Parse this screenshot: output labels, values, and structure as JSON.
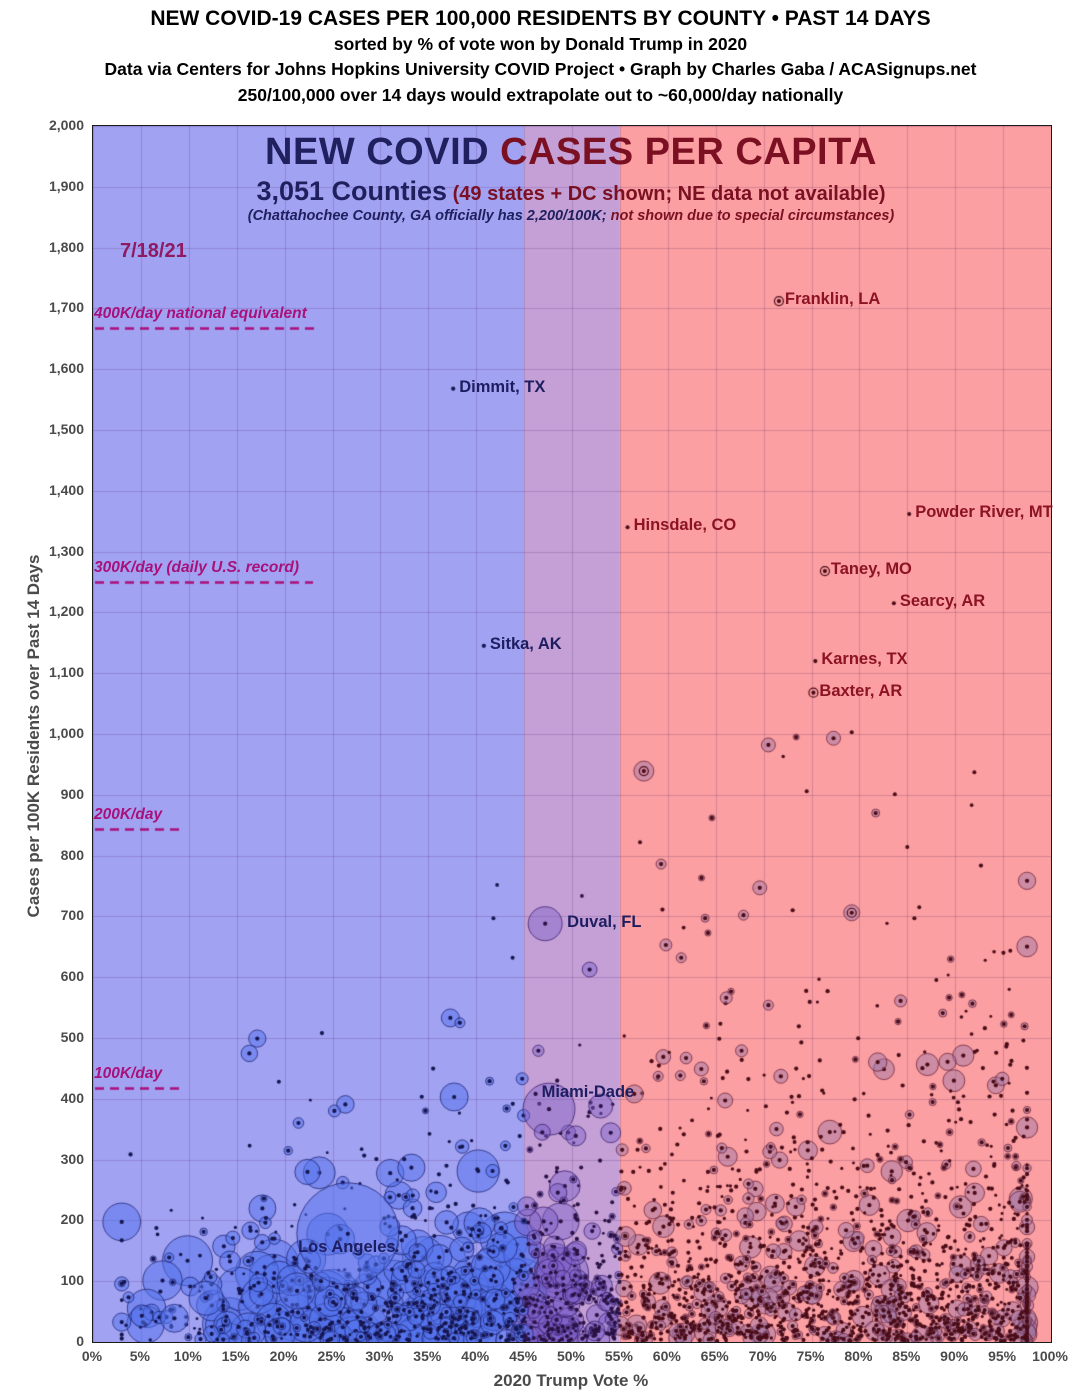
{
  "header": {
    "line1": "NEW COVID-19 CASES PER 100,000 RESIDENTS BY COUNTY • PAST 14 DAYS",
    "line2": "sorted by % of vote won by Donald Trump in 2020",
    "line3": "Data via Centers for Johns Hopkins University COVID Project • Graph by Charles Gaba / ACASignups.net",
    "line4": "250/100,000 over 14 days would extrapolate out to ~60,000/day nationally"
  },
  "chart": {
    "title_navy": "NEW COVID ",
    "title_red": "CASES PER CAPITA",
    "subtitle_navy": "3,051 Counties",
    "subtitle_red": " (49 states + DC shown; NE data not available)",
    "note_navy": "(Chattahochee County, GA officially has 2,200/100K;",
    "note_red": " not shown due to special circumstances)",
    "date_label": "7/18/21",
    "x_axis_title": "2020 Trump Vote %",
    "y_axis_title": "Cases per 100K Residents over Past 14 Days"
  },
  "colors": {
    "band_blue": "#a2a2f3",
    "band_purple": "#c5a0d7",
    "band_red": "#fb9fa2",
    "gridline": "rgba(70,25,90,0.20)",
    "annotation_magenta": "#a8117a",
    "title_navy": "#20205f",
    "title_maroon": "#7a1022",
    "label_navy": "#1d1d60",
    "label_maroon": "#8c1322",
    "dot_navy": "#161650",
    "dot_maroon": "#4a0d18"
  },
  "chart_data": {
    "type": "scatter",
    "title": "NEW COVID CASES PER CAPITA",
    "xlabel": "2020 Trump Vote %",
    "ylabel": "Cases per 100K Residents over Past 14 Days",
    "xlim": [
      0,
      100
    ],
    "ylim": [
      0,
      2000
    ],
    "x_ticks": [
      "0%",
      "5%",
      "10%",
      "15%",
      "20%",
      "25%",
      "30%",
      "35%",
      "40%",
      "45%",
      "50%",
      "55%",
      "60%",
      "65%",
      "70%",
      "75%",
      "80%",
      "85%",
      "90%",
      "95%",
      "100%"
    ],
    "y_ticks": [
      "2,000",
      "1,900",
      "1,800",
      "1,700",
      "1,600",
      "1,500",
      "1,400",
      "1,300",
      "1,200",
      "1,100",
      "1,000",
      "900",
      "800",
      "700",
      "600",
      "500",
      "400",
      "300",
      "200",
      "100",
      "0"
    ],
    "regions": [
      {
        "name": "blue-counties",
        "from": 0,
        "to": 45
      },
      {
        "name": "purple-overlap",
        "from": 45,
        "to": 55
      },
      {
        "name": "red-counties",
        "from": 55,
        "to": 100
      }
    ],
    "reference_lines": [
      {
        "label": "400K/day national equivalent",
        "cases": 1667,
        "dash_width": 224
      },
      {
        "label": "300K/day (daily U.S. record)",
        "cases": 1250,
        "dash_width": 218
      },
      {
        "label": "200K/day",
        "cases": 843,
        "dash_width": 84
      },
      {
        "label": "100K/day",
        "cases": 417,
        "dash_width": 84
      }
    ],
    "labeled_points": [
      {
        "name": "Franklin, LA",
        "x_pct": 71.6,
        "cases": 1712,
        "r": 2.2,
        "ring": true,
        "color": "maroon",
        "anchor": "right"
      },
      {
        "name": "Dimmit, TX",
        "x_pct": 37.6,
        "cases": 1568,
        "r": 2.2,
        "ring": false,
        "color": "navy",
        "anchor": "right"
      },
      {
        "name": "Powder River, MT",
        "x_pct": 85.2,
        "cases": 1362,
        "r": 2.0,
        "ring": false,
        "color": "maroon",
        "anchor": "right"
      },
      {
        "name": "Hinsdale, CO",
        "x_pct": 55.8,
        "cases": 1340,
        "r": 2.0,
        "ring": false,
        "color": "maroon",
        "anchor": "right"
      },
      {
        "name": "Taney, MO",
        "x_pct": 76.4,
        "cases": 1268,
        "r": 2.4,
        "ring": true,
        "color": "maroon",
        "anchor": "right"
      },
      {
        "name": "Searcy, AR",
        "x_pct": 83.6,
        "cases": 1215,
        "r": 2.0,
        "ring": false,
        "color": "maroon",
        "anchor": "right"
      },
      {
        "name": "Sitka, AK",
        "x_pct": 40.8,
        "cases": 1145,
        "r": 2.2,
        "ring": false,
        "color": "navy",
        "anchor": "right"
      },
      {
        "name": "Karnes, TX",
        "x_pct": 75.4,
        "cases": 1120,
        "r": 2.2,
        "ring": false,
        "color": "maroon",
        "anchor": "right"
      },
      {
        "name": "Baxter, AR",
        "x_pct": 75.2,
        "cases": 1068,
        "r": 2.4,
        "ring": true,
        "color": "maroon",
        "anchor": "right"
      },
      {
        "name": "Duval, FL",
        "x_pct": 47.2,
        "cases": 688,
        "r": 17,
        "ring": false,
        "color": "navy",
        "anchor": "right"
      },
      {
        "name": "Miami-Dade",
        "x_pct": 46.2,
        "cases": 408,
        "r": 2.2,
        "ring": false,
        "color": "navy",
        "anchor": "right"
      },
      {
        "name": "Los Angeles",
        "x_pct": 26.6,
        "cases": 178,
        "r": 51,
        "ring": false,
        "color": "navy",
        "anchor": "center"
      }
    ],
    "notable_points": [
      {
        "x_pct": 5.1,
        "cases": 43,
        "r": 11
      },
      {
        "x_pct": 8.5,
        "cases": 39,
        "r": 14
      },
      {
        "x_pct": 11.8,
        "cases": 72,
        "r": 17
      },
      {
        "x_pct": 14.6,
        "cases": 171,
        "r": 7
      },
      {
        "x_pct": 16.2,
        "cases": 133,
        "r": 5
      },
      {
        "x_pct": 21.3,
        "cases": 84,
        "r": 18
      },
      {
        "x_pct": 23.8,
        "cases": 100,
        "r": 9
      },
      {
        "x_pct": 19.4,
        "cases": 428,
        "r": 2
      },
      {
        "x_pct": 25.2,
        "cases": 380,
        "r": 6
      },
      {
        "x_pct": 31.0,
        "cases": 238,
        "r": 6
      },
      {
        "x_pct": 37.3,
        "cases": 533,
        "r": 9
      },
      {
        "x_pct": 38.3,
        "cases": 525,
        "r": 5
      },
      {
        "x_pct": 37.7,
        "cases": 403,
        "r": 14
      },
      {
        "x_pct": 41.4,
        "cases": 429,
        "r": 4
      },
      {
        "x_pct": 44.8,
        "cases": 433,
        "r": 6
      },
      {
        "x_pct": 41.8,
        "cases": 697,
        "r": 2
      },
      {
        "x_pct": 43.8,
        "cases": 632,
        "r": 2
      },
      {
        "x_pct": 47.6,
        "cases": 383,
        "r": 26
      },
      {
        "x_pct": 53.0,
        "cases": 388,
        "r": 12
      },
      {
        "x_pct": 50.4,
        "cases": 339,
        "r": 10
      },
      {
        "x_pct": 46.9,
        "cases": 345,
        "r": 8
      },
      {
        "x_pct": 57.3,
        "cases": 409,
        "r": 2
      },
      {
        "x_pct": 57.5,
        "cases": 939,
        "r": 10,
        "ring": true
      },
      {
        "x_pct": 70.5,
        "cases": 982,
        "r": 7
      },
      {
        "x_pct": 73.4,
        "cases": 995,
        "r": 3
      },
      {
        "x_pct": 77.3,
        "cases": 993,
        "r": 7
      },
      {
        "x_pct": 79.2,
        "cases": 1003,
        "r": 2
      },
      {
        "x_pct": 92.0,
        "cases": 937,
        "r": 2
      },
      {
        "x_pct": 74.5,
        "cases": 906,
        "r": 2
      },
      {
        "x_pct": 81.7,
        "cases": 870,
        "r": 4
      },
      {
        "x_pct": 83.7,
        "cases": 901,
        "r": 2
      },
      {
        "x_pct": 64.6,
        "cases": 862,
        "r": 3
      },
      {
        "x_pct": 57.1,
        "cases": 822,
        "r": 2
      },
      {
        "x_pct": 59.3,
        "cases": 786,
        "r": 5
      },
      {
        "x_pct": 69.6,
        "cases": 747,
        "r": 7
      },
      {
        "x_pct": 79.2,
        "cases": 706,
        "r": 8,
        "ring": true
      },
      {
        "x_pct": 85.0,
        "cases": 814,
        "r": 2
      },
      {
        "x_pct": 67.9,
        "cases": 702,
        "r": 5
      },
      {
        "x_pct": 63.9,
        "cases": 697,
        "r": 4
      },
      {
        "x_pct": 59.8,
        "cases": 653,
        "r": 6
      },
      {
        "x_pct": 61.4,
        "cases": 632,
        "r": 5
      },
      {
        "x_pct": 66.1,
        "cases": 566,
        "r": 6
      },
      {
        "x_pct": 70.5,
        "cases": 554,
        "r": 5
      },
      {
        "x_pct": 84.3,
        "cases": 561,
        "r": 6
      },
      {
        "x_pct": 88.7,
        "cases": 541,
        "r": 4
      },
      {
        "x_pct": 90.7,
        "cases": 571,
        "r": 3
      },
      {
        "x_pct": 56.5,
        "cases": 408,
        "r": 9
      },
      {
        "x_pct": 59.0,
        "cases": 437,
        "r": 5
      },
      {
        "x_pct": 63.5,
        "cases": 449,
        "r": 7
      },
      {
        "x_pct": 67.7,
        "cases": 479,
        "r": 6
      },
      {
        "x_pct": 71.8,
        "cases": 437,
        "r": 7
      }
    ],
    "background_points": {
      "seed": 11,
      "count": 2650
    }
  }
}
